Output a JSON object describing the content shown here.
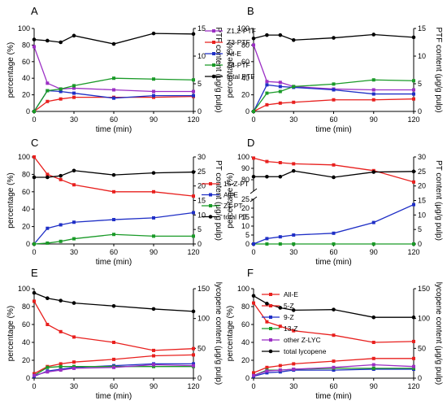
{
  "chart_data": [
    {
      "panel": "A",
      "type": "line",
      "xlabel": "time (min)",
      "ylabel": "percentage (%)",
      "y2label": "PTF content (μg/g pulp)",
      "xlim": [
        0,
        120
      ],
      "ylim": [
        0,
        100
      ],
      "y2lim": [
        0,
        15
      ],
      "xticks": [
        0,
        30,
        60,
        90,
        120
      ],
      "yticks": [
        0,
        20,
        40,
        60,
        80,
        100
      ],
      "y2ticks": [
        0,
        5,
        10,
        15
      ],
      "legend": [
        {
          "label": "Z1,2-PTF",
          "color": "#9b2fc4"
        },
        {
          "label": "Z3-PTF",
          "color": "#e8201e"
        },
        {
          "label": "All-E",
          "color": "#1f2fc6"
        },
        {
          "label": "Z4-PTF",
          "color": "#1a9a28"
        },
        {
          "label": "total PTF",
          "color": "#000000"
        }
      ],
      "series": [
        {
          "name": "Z1,2-PTF",
          "color": "#9b2fc4",
          "axis": "left",
          "x": [
            0,
            10,
            20,
            30,
            60,
            90,
            120
          ],
          "y": [
            78,
            34,
            27,
            28,
            26,
            24,
            24
          ]
        },
        {
          "name": "Z3-PTF",
          "color": "#e8201e",
          "axis": "left",
          "x": [
            0,
            10,
            20,
            30,
            60,
            90,
            120
          ],
          "y": [
            0,
            12,
            15,
            17,
            17,
            17,
            18
          ]
        },
        {
          "name": "All-E",
          "color": "#1f2fc6",
          "axis": "left",
          "x": [
            0,
            10,
            20,
            30,
            60,
            90,
            120
          ],
          "y": [
            0,
            25,
            24,
            22,
            16,
            19,
            19
          ]
        },
        {
          "name": "Z4-PTF",
          "color": "#1a9a28",
          "axis": "left",
          "x": [
            0,
            10,
            20,
            30,
            60,
            90,
            120
          ],
          "y": [
            0,
            25,
            27,
            31,
            40,
            39,
            38
          ]
        },
        {
          "name": "total PTF",
          "color": "#000000",
          "axis": "right",
          "x": [
            0,
            10,
            20,
            30,
            60,
            90,
            120
          ],
          "y": [
            13.0,
            12.8,
            12.5,
            13.7,
            12.2,
            14.1,
            14.0
          ]
        }
      ]
    },
    {
      "panel": "B",
      "type": "line",
      "xlabel": "time (min)",
      "ylabel": "percentage (%)",
      "y2label": "PTF content (μg/g pulp)",
      "xlim": [
        0,
        120
      ],
      "ylim": [
        0,
        100
      ],
      "y2lim": [
        0,
        15
      ],
      "xticks": [
        0,
        30,
        60,
        90,
        120
      ],
      "yticks": [
        0,
        20,
        40,
        60,
        80,
        100
      ],
      "y2ticks": [
        0,
        5,
        10,
        15
      ],
      "series": [
        {
          "name": "Z1,2-PTF",
          "color": "#9b2fc4",
          "axis": "left",
          "x": [
            0,
            10,
            20,
            30,
            60,
            90,
            120
          ],
          "y": [
            80,
            36,
            35,
            30,
            27,
            26,
            26
          ]
        },
        {
          "name": "Z3-PTF",
          "color": "#e8201e",
          "axis": "left",
          "x": [
            0,
            10,
            20,
            30,
            60,
            90,
            120
          ],
          "y": [
            0,
            8,
            10,
            11,
            14,
            14,
            15
          ]
        },
        {
          "name": "All-E",
          "color": "#1f2fc6",
          "axis": "left",
          "x": [
            0,
            10,
            20,
            30,
            60,
            90,
            120
          ],
          "y": [
            0,
            32,
            30,
            29,
            26,
            21,
            21
          ]
        },
        {
          "name": "Z4-PTF",
          "color": "#1a9a28",
          "axis": "left",
          "x": [
            0,
            10,
            20,
            30,
            60,
            90,
            120
          ],
          "y": [
            0,
            22,
            24,
            30,
            33,
            38,
            37
          ]
        },
        {
          "name": "total PTF",
          "color": "#000000",
          "axis": "right",
          "x": [
            0,
            10,
            20,
            30,
            60,
            90,
            120
          ],
          "y": [
            13.2,
            13.8,
            13.8,
            12.9,
            13.3,
            13.9,
            13.4
          ]
        }
      ]
    },
    {
      "panel": "C",
      "type": "line",
      "xlabel": "time (min)",
      "ylabel": "percentage (%)",
      "y2label": "PT content (μg/g pulp)",
      "xlim": [
        0,
        120
      ],
      "ylim": [
        0,
        100
      ],
      "y2lim": [
        0,
        30
      ],
      "xticks": [
        0,
        30,
        60,
        90,
        120
      ],
      "yticks": [
        0,
        20,
        40,
        60,
        80,
        100
      ],
      "y2ticks": [
        0,
        5,
        10,
        15,
        20,
        25,
        30
      ],
      "legend": [
        {
          "label": "15-Z-PT",
          "color": "#e8201e"
        },
        {
          "label": "All-E",
          "color": "#1f2fc6"
        },
        {
          "label": "Z1-PT",
          "color": "#1a9a28"
        },
        {
          "label": "total PT",
          "color": "#000000"
        }
      ],
      "series": [
        {
          "name": "15-Z-PT",
          "color": "#e8201e",
          "axis": "left",
          "x": [
            0,
            10,
            20,
            30,
            60,
            90,
            120
          ],
          "y": [
            100,
            80,
            74,
            68,
            60,
            60,
            55
          ]
        },
        {
          "name": "All-E",
          "color": "#1f2fc6",
          "axis": "left",
          "x": [
            0,
            10,
            20,
            30,
            60,
            90,
            120
          ],
          "y": [
            0,
            18,
            22,
            25,
            28,
            30,
            36
          ]
        },
        {
          "name": "Z1-PT",
          "color": "#1a9a28",
          "axis": "left",
          "x": [
            0,
            10,
            20,
            30,
            60,
            90,
            120
          ],
          "y": [
            0,
            1,
            3,
            6,
            11,
            9,
            9
          ]
        },
        {
          "name": "total PT",
          "color": "#000000",
          "axis": "right",
          "x": [
            0,
            10,
            20,
            30,
            60,
            90,
            120
          ],
          "y": [
            23.0,
            23.0,
            23.5,
            25.3,
            23.8,
            24.5,
            24.8
          ]
        }
      ]
    },
    {
      "panel": "D",
      "type": "line",
      "xlabel": "time (min)",
      "ylabel": "percentage (%)",
      "y2label": "PT content (μg/g pulp)",
      "xlim": [
        0,
        120
      ],
      "ylim_upper": [
        70,
        100
      ],
      "ylim_lower": [
        0,
        25
      ],
      "y2lim": [
        0,
        30
      ],
      "xticks": [
        0,
        30,
        60,
        90,
        120
      ],
      "yticks_upper": [
        80,
        90,
        100
      ],
      "yticks_lower": [
        0,
        5,
        10,
        15,
        20,
        25
      ],
      "y2ticks": [
        0,
        5,
        10,
        15,
        20,
        25,
        30
      ],
      "series": [
        {
          "name": "15-Z-PT",
          "color": "#e8201e",
          "axis": "upper",
          "x": [
            0,
            10,
            20,
            30,
            60,
            90,
            120
          ],
          "y": [
            99,
            96,
            95,
            94,
            93,
            88,
            78
          ]
        },
        {
          "name": "Z1-PT",
          "color": "#1a9a28",
          "axis": "lower",
          "x": [
            0,
            10,
            20,
            30,
            60,
            90,
            120
          ],
          "y": [
            0,
            0,
            0,
            0,
            0,
            0,
            0
          ]
        },
        {
          "name": "All-E",
          "color": "#1f2fc6",
          "axis": "lower",
          "x": [
            0,
            10,
            20,
            30,
            60,
            90,
            120
          ],
          "y": [
            0,
            3,
            4,
            5,
            6,
            12,
            22
          ]
        },
        {
          "name": "total PT",
          "color": "#000000",
          "axis": "right",
          "x": [
            0,
            10,
            20,
            30,
            60,
            90,
            120
          ],
          "y": [
            23.2,
            23.2,
            23.2,
            25.2,
            23.0,
            24.8,
            25.0
          ]
        }
      ]
    },
    {
      "panel": "E",
      "type": "line",
      "xlabel": "time (min)",
      "ylabel": "percentage (%)",
      "y2label": "lycopene content (μg/g pulp)",
      "xlim": [
        0,
        120
      ],
      "ylim": [
        0,
        100
      ],
      "y2lim": [
        0,
        150
      ],
      "xticks": [
        0,
        30,
        60,
        90,
        120
      ],
      "yticks": [
        0,
        20,
        40,
        60,
        80,
        100
      ],
      "y2ticks": [
        0,
        50,
        100,
        150
      ],
      "series": [
        {
          "name": "All-E",
          "color": "#e8201e",
          "axis": "left",
          "x": [
            0,
            10,
            20,
            30,
            60,
            90,
            120
          ],
          "y": [
            86,
            60,
            52,
            46,
            40,
            31,
            33
          ]
        },
        {
          "name": "5-Z",
          "color": "#e8201e",
          "axis": "left",
          "x": [
            0,
            10,
            20,
            30,
            60,
            90,
            120
          ],
          "y": [
            5,
            13,
            16,
            18,
            21,
            25,
            26
          ]
        },
        {
          "name": "9-Z",
          "color": "#1f2fc6",
          "axis": "left",
          "x": [
            0,
            10,
            20,
            30,
            60,
            90,
            120
          ],
          "y": [
            2,
            8,
            10,
            12,
            14,
            16,
            16
          ]
        },
        {
          "name": "13-Z",
          "color": "#1a9a28",
          "axis": "left",
          "x": [
            0,
            10,
            20,
            30,
            60,
            90,
            120
          ],
          "y": [
            3,
            12,
            13,
            13,
            13,
            13,
            13
          ]
        },
        {
          "name": "other Z-LYC",
          "color": "#9b2fc4",
          "axis": "left",
          "x": [
            0,
            10,
            20,
            30,
            60,
            90,
            120
          ],
          "y": [
            3,
            7,
            9,
            11,
            12,
            15,
            14
          ]
        },
        {
          "name": "total lycopene",
          "color": "#000000",
          "axis": "right",
          "x": [
            0,
            10,
            20,
            30,
            60,
            90,
            120
          ],
          "y": [
            143,
            134,
            130,
            126,
            121,
            116,
            112
          ]
        }
      ]
    },
    {
      "panel": "F",
      "type": "line",
      "xlabel": "time (min)",
      "ylabel": "percentage (%)",
      "y2label": "lycopene content (μg/g pulp)",
      "xlim": [
        0,
        120
      ],
      "ylim": [
        0,
        100
      ],
      "y2lim": [
        0,
        150
      ],
      "xticks": [
        0,
        30,
        60,
        90,
        120
      ],
      "yticks": [
        0,
        20,
        40,
        60,
        80,
        100
      ],
      "y2ticks": [
        0,
        50,
        100,
        150
      ],
      "legend": [
        {
          "label": "All-E",
          "color": "#e8201e"
        },
        {
          "label": "5-Z",
          "color": "#e8201e"
        },
        {
          "label": "9-Z",
          "color": "#1f2fc6"
        },
        {
          "label": "13-Z",
          "color": "#1a9a28"
        },
        {
          "label": "other Z-LYC",
          "color": "#9b2fc4"
        },
        {
          "label": "total lycopene",
          "color": "#000000"
        }
      ],
      "series": [
        {
          "name": "All-E",
          "color": "#e8201e",
          "axis": "left",
          "x": [
            0,
            10,
            20,
            30,
            60,
            90,
            120
          ],
          "y": [
            84,
            63,
            58,
            53,
            48,
            40,
            41
          ]
        },
        {
          "name": "5-Z",
          "color": "#e8201e",
          "axis": "left",
          "x": [
            0,
            10,
            20,
            30,
            60,
            90,
            120
          ],
          "y": [
            6,
            12,
            14,
            16,
            19,
            22,
            22
          ]
        },
        {
          "name": "9-Z",
          "color": "#1f2fc6",
          "axis": "left",
          "x": [
            0,
            10,
            20,
            30,
            60,
            90,
            120
          ],
          "y": [
            2,
            6,
            7,
            9,
            9,
            10,
            10
          ]
        },
        {
          "name": "13-Z",
          "color": "#1a9a28",
          "axis": "left",
          "x": [
            0,
            10,
            20,
            30,
            60,
            90,
            120
          ],
          "y": [
            3,
            9,
            9,
            10,
            11,
            11,
            11
          ]
        },
        {
          "name": "other Z-LYC",
          "color": "#9b2fc4",
          "axis": "left",
          "x": [
            0,
            10,
            20,
            30,
            60,
            90,
            120
          ],
          "y": [
            3,
            8,
            9,
            10,
            12,
            15,
            13
          ]
        },
        {
          "name": "total lycopene",
          "color": "#000000",
          "axis": "right",
          "x": [
            0,
            10,
            20,
            30,
            60,
            90,
            120
          ],
          "y": [
            138,
            125,
            118,
            114,
            115,
            102,
            102
          ]
        }
      ]
    }
  ]
}
